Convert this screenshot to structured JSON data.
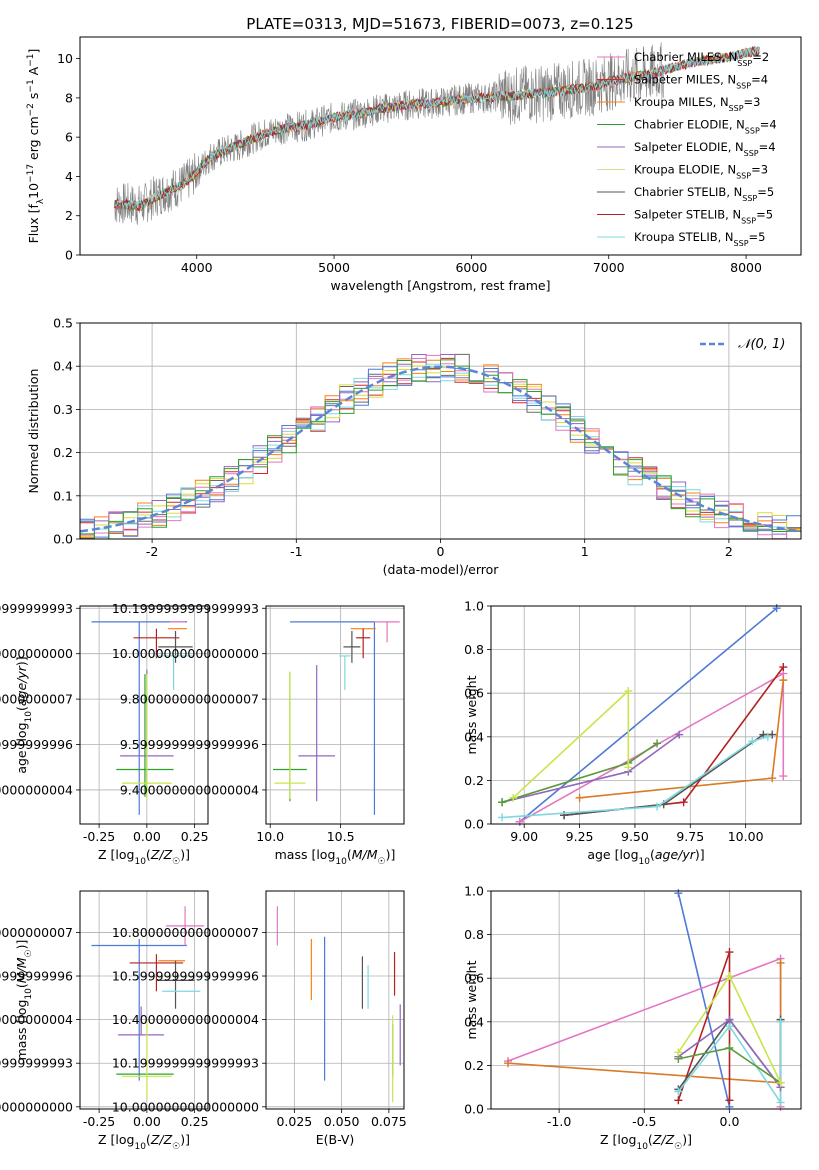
{
  "figure_title": "PLATE=0313, MJD=51673, FIBERID=0073, z=0.125",
  "chart_data": [
    {
      "id": "spectrum",
      "type": "line",
      "title": "PLATE=0313, MJD=51673, FIBERID=0073, z=0.125",
      "xlabel": "wavelength [Angstrom, rest frame]",
      "ylabel": "Flux [fλ10⁻¹⁷ erg cm⁻² s⁻¹ A⁻¹]",
      "xlim": [
        3150,
        8400
      ],
      "ylim": [
        0,
        11.1
      ],
      "xticks": [
        4000,
        5000,
        6000,
        7000,
        8000
      ],
      "yticks": [
        0,
        2,
        4,
        6,
        8,
        10
      ],
      "grid": false,
      "legend_position": "top-right",
      "data_trace": {
        "color": "#808080",
        "x": [
          3400,
          3500,
          3600,
          3700,
          3800,
          3900,
          4000,
          4100,
          4200,
          4300,
          4400,
          4500,
          4600,
          4700,
          4800,
          4900,
          5000,
          5100,
          5200,
          5300,
          5400,
          5500,
          5600,
          5700,
          5800,
          5900,
          6000,
          6100,
          6200,
          6300,
          6400,
          6500,
          6600,
          6700,
          6800,
          6900,
          7000,
          7100,
          7200,
          7300,
          7400
        ],
        "y": [
          2.6,
          2.6,
          2.5,
          3.0,
          3.3,
          3.6,
          4.2,
          5.0,
          5.3,
          5.5,
          5.9,
          6.2,
          6.4,
          6.5,
          6.6,
          6.8,
          7.0,
          7.1,
          7.2,
          7.4,
          7.5,
          7.6,
          7.7,
          7.7,
          7.8,
          7.9,
          8.0,
          8.0,
          8.1,
          8.1,
          8.2,
          8.2,
          8.3,
          8.4,
          8.5,
          8.6,
          8.8,
          9.0,
          9.1,
          9.2,
          9.4
        ]
      },
      "model_x": [
        3400,
        3500,
        3600,
        3700,
        3800,
        3900,
        4000,
        4100,
        4200,
        4300,
        4400,
        4500,
        4600,
        4700,
        4800,
        4900,
        5000,
        5100,
        5200,
        5300,
        5400,
        5500,
        5600,
        5700,
        5800,
        5900,
        6000,
        6100,
        6200,
        6300,
        6400,
        6500,
        6600,
        6700,
        6800,
        6900,
        7000,
        7100,
        7200,
        7300,
        7400,
        7500,
        7600,
        7700,
        7800,
        7900,
        8000,
        8100
      ],
      "model_y": [
        2.6,
        2.55,
        2.5,
        2.95,
        3.3,
        3.6,
        4.2,
        5.0,
        5.3,
        5.6,
        5.9,
        6.2,
        6.4,
        6.5,
        6.6,
        6.8,
        7.0,
        7.1,
        7.2,
        7.4,
        7.5,
        7.6,
        7.7,
        7.7,
        7.8,
        7.9,
        8.0,
        8.0,
        8.1,
        8.1,
        8.2,
        8.25,
        8.3,
        8.4,
        8.5,
        8.6,
        8.8,
        9.0,
        9.1,
        9.2,
        9.4,
        9.6,
        9.8,
        9.9,
        10.0,
        10.1,
        10.3,
        10.4
      ],
      "series": [
        {
          "name": "Chabrier MILES, N_SSP=2",
          "color": "#e377c2"
        },
        {
          "name": "Salpeter MILES, N_SSP=4",
          "color": "#d62728"
        },
        {
          "name": "Kroupa MILES, N_SSP=3",
          "color": "#ff7f0e"
        },
        {
          "name": "Chabrier ELODIE, N_SSP=4",
          "color": "#2ca02c"
        },
        {
          "name": "Salpeter ELODIE, N_SSP=4",
          "color": "#9467bd"
        },
        {
          "name": "Kroupa ELODIE, N_SSP=3",
          "color": "#dbdb8d"
        },
        {
          "name": "Chabrier STELIB, N_SSP=5",
          "color": "#555555"
        },
        {
          "name": "Salpeter STELIB, N_SSP=5",
          "color": "#b22222"
        },
        {
          "name": "Kroupa STELIB, N_SSP=5",
          "color": "#7fd8e0"
        }
      ],
      "legend_labels": [
        {
          "model": "Chabrier MILES, N",
          "sub": "SSP",
          "val": "=2"
        },
        {
          "model": "Salpeter MILES, N",
          "sub": "SSP",
          "val": "=4"
        },
        {
          "model": "Kroupa MILES, N",
          "sub": "SSP",
          "val": "=3"
        },
        {
          "model": "Chabrier ELODIE, N",
          "sub": "SSP",
          "val": "=4"
        },
        {
          "model": "Salpeter ELODIE, N",
          "sub": "SSP",
          "val": "=4"
        },
        {
          "model": "Kroupa ELODIE, N",
          "sub": "SSP",
          "val": "=3"
        },
        {
          "model": "Chabrier STELIB, N",
          "sub": "SSP",
          "val": "=5"
        },
        {
          "model": "Salpeter STELIB, N",
          "sub": "SSP",
          "val": "=5"
        },
        {
          "model": "Kroupa STELIB, N",
          "sub": "SSP",
          "val": "=5"
        }
      ]
    },
    {
      "id": "residuals",
      "type": "bar",
      "xlabel": "(data-model)/error",
      "ylabel": "Normed distribution",
      "xlim": [
        -2.5,
        2.5
      ],
      "ylim": [
        0,
        0.5
      ],
      "xticks": [
        -2,
        -1,
        0,
        1,
        2
      ],
      "yticks": [
        0.0,
        0.1,
        0.2,
        0.3,
        0.4,
        0.5
      ],
      "grid": true,
      "bin_width": 0.1,
      "bin_start": -2.5,
      "reference_curve": {
        "name": "𝒩(0, 1)",
        "mean": 0,
        "sigma": 1,
        "color": "#5a86d6"
      },
      "histogram_colors": [
        "#6a6a6a",
        "#d62728",
        "#ff7f0e",
        "#9467bd",
        "#dbdb3d",
        "#7fd8e0",
        "#e377c2",
        "#4e79d8",
        "#2ca02c"
      ],
      "legend_position": "top-right"
    },
    {
      "id": "age-vs-Z",
      "type": "scatter",
      "xlabel": "Z [log10(Z/Z☉)]",
      "ylabel": "age [log10(age/yr)]",
      "xlim": [
        -0.35,
        0.32
      ],
      "ylim": [
        9.25,
        10.21
      ],
      "xticks": [
        -0.25,
        0.0,
        0.25
      ],
      "yticks": [
        9.4,
        9.6,
        9.8,
        10.0,
        10.2
      ],
      "grid": true,
      "points": [
        {
          "x": -0.04,
          "y": 10.14,
          "xerr": 0.25,
          "yerr_lo": 0.85,
          "yerr_hi": 0.0,
          "color": "#4e79d8"
        },
        {
          "x": 0.16,
          "y": 10.14,
          "xerr": 0.04,
          "yerr_lo": 0.0,
          "yerr_hi": 0.0,
          "color": "#e377c2"
        },
        {
          "x": 0.16,
          "y": 10.11,
          "xerr": 0.05,
          "yerr_lo": 0.0,
          "yerr_hi": 0.0,
          "color": "#ff7f0e"
        },
        {
          "x": 0.05,
          "y": 10.07,
          "xerr": 0.12,
          "yerr_lo": 0.09,
          "yerr_hi": 0.04,
          "color": "#b22222"
        },
        {
          "x": 0.15,
          "y": 10.03,
          "xerr": 0.09,
          "yerr_lo": 0.07,
          "yerr_hi": 0.07,
          "color": "#555555"
        },
        {
          "x": 0.14,
          "y": 9.99,
          "xerr": 0.1,
          "yerr_lo": 0.15,
          "yerr_hi": 0.0,
          "color": "#7fd8e0"
        },
        {
          "x": 0.0,
          "y": 9.55,
          "xerr": 0.14,
          "yerr_lo": 0.18,
          "yerr_hi": 0.38,
          "color": "#9467bd"
        },
        {
          "x": -0.01,
          "y": 9.49,
          "xerr": 0.15,
          "yerr_lo": 0.12,
          "yerr_hi": 0.42,
          "color": "#2ca02c"
        },
        {
          "x": 0.0,
          "y": 9.43,
          "xerr": 0.13,
          "yerr_lo": 0.07,
          "yerr_hi": 0.48,
          "color": "#c8e64a"
        }
      ]
    },
    {
      "id": "age-vs-mass",
      "type": "scatter",
      "xlabel": "mass [log10(M/M☉)]",
      "ylabel": "",
      "xlim": [
        9.97,
        10.95
      ],
      "ylim": [
        9.25,
        10.21
      ],
      "xticks": [
        10.0,
        10.5
      ],
      "yticks": [
        9.4,
        9.6,
        9.8,
        10.0,
        10.2
      ],
      "grid": true,
      "points": [
        {
          "x": 10.74,
          "y": 10.14,
          "xerr_lo": 0.6,
          "xerr_hi": 0.0,
          "yerr_lo": 0.85,
          "yerr_hi": 0.0,
          "color": "#4e79d8"
        },
        {
          "x": 10.83,
          "y": 10.14,
          "xerr": 0.09,
          "yerr_lo": 0.09,
          "yerr_hi": 0.0,
          "color": "#e377c2"
        },
        {
          "x": 10.66,
          "y": 10.11,
          "xerr": 0.09,
          "yerr_lo": 0.0,
          "yerr_hi": 0.0,
          "color": "#ff7f0e"
        },
        {
          "x": 10.66,
          "y": 10.07,
          "xerr": 0.05,
          "yerr_lo": 0.09,
          "yerr_hi": 0.04,
          "color": "#b22222"
        },
        {
          "x": 10.58,
          "y": 10.03,
          "xerr": 0.06,
          "yerr_lo": 0.07,
          "yerr_hi": 0.07,
          "color": "#555555"
        },
        {
          "x": 10.53,
          "y": 9.99,
          "xerr": 0.04,
          "yerr_lo": 0.15,
          "yerr_hi": 0.0,
          "color": "#7fd8e0"
        },
        {
          "x": 10.33,
          "y": 9.55,
          "xerr": 0.13,
          "yerr_lo": 0.2,
          "yerr_hi": 0.4,
          "color": "#9467bd"
        },
        {
          "x": 10.14,
          "y": 9.49,
          "xerr": 0.12,
          "yerr_lo": 0.14,
          "yerr_hi": 0.43,
          "color": "#2ca02c"
        },
        {
          "x": 10.14,
          "y": 9.43,
          "xerr": 0.11,
          "yerr_lo": 0.07,
          "yerr_hi": 0.49,
          "color": "#c8e64a"
        }
      ]
    },
    {
      "id": "weight-vs-age",
      "type": "line",
      "xlabel": "age [log10(age/yr)]",
      "ylabel": "mass weight",
      "xlim": [
        8.85,
        10.25
      ],
      "ylim": [
        0,
        1.0
      ],
      "xticks": [
        9.0,
        9.25,
        9.5,
        9.75,
        10.0
      ],
      "yticks": [
        0.0,
        0.2,
        0.4,
        0.6,
        0.8,
        1.0
      ],
      "grid": true,
      "series": [
        {
          "color": "#4e79d8",
          "x": [
            8.98,
            10.14
          ],
          "y": [
            0.01,
            0.99
          ]
        },
        {
          "color": "#e377c2",
          "x": [
            8.98,
            10.17,
            10.17
          ],
          "y": [
            0.01,
            0.69,
            0.22
          ]
        },
        {
          "color": "#d97a26",
          "x": [
            9.25,
            10.12,
            10.17
          ],
          "y": [
            0.12,
            0.21,
            0.66
          ]
        },
        {
          "color": "#b22222",
          "x": [
            9.18,
            9.72,
            10.17
          ],
          "y": [
            0.04,
            0.1,
            0.72
          ]
        },
        {
          "color": "#555555",
          "x": [
            9.18,
            9.63,
            10.08,
            10.12
          ],
          "y": [
            0.04,
            0.09,
            0.41,
            0.41
          ]
        },
        {
          "color": "#7fd8e0",
          "x": [
            8.9,
            9.6,
            10.03,
            10.1
          ],
          "y": [
            0.03,
            0.08,
            0.38,
            0.4
          ]
        },
        {
          "color": "#9467bd",
          "x": [
            8.9,
            9.47,
            9.7
          ],
          "y": [
            0.1,
            0.24,
            0.41
          ]
        },
        {
          "color": "#5a9a3a",
          "x": [
            8.9,
            9.47,
            9.6
          ],
          "y": [
            0.1,
            0.28,
            0.37
          ]
        },
        {
          "color": "#c8e64a",
          "x": [
            8.95,
            9.47,
            9.47
          ],
          "y": [
            0.12,
            0.61,
            0.26
          ]
        }
      ]
    },
    {
      "id": "mass-vs-Z",
      "type": "scatter",
      "xlabel": "Z [log10(Z/Z☉)]",
      "ylabel": "mass [log10(M/M☉)]",
      "xlim": [
        -0.35,
        0.32
      ],
      "ylim": [
        9.99,
        10.99
      ],
      "xticks": [
        -0.25,
        0.0,
        0.25
      ],
      "yticks": [
        10.0,
        10.2,
        10.4,
        10.6,
        10.8
      ],
      "grid": true,
      "points": [
        {
          "x": -0.04,
          "y": 10.74,
          "xerr": 0.25,
          "yerr_lo": 0.62,
          "yerr_hi": 0.03,
          "color": "#4e79d8"
        },
        {
          "x": 0.2,
          "y": 10.83,
          "xerr": 0.1,
          "yerr_lo": 0.09,
          "yerr_hi": 0.09,
          "color": "#e377c2"
        },
        {
          "x": 0.13,
          "y": 10.67,
          "xerr": 0.07,
          "yerr_lo": 0.0,
          "yerr_hi": 0.0,
          "color": "#ff7f0e"
        },
        {
          "x": 0.05,
          "y": 10.66,
          "xerr": 0.14,
          "yerr_lo": 0.13,
          "yerr_hi": 0.04,
          "color": "#b22222"
        },
        {
          "x": 0.15,
          "y": 10.58,
          "xerr": 0.1,
          "yerr_lo": 0.13,
          "yerr_hi": 0.09,
          "color": "#555555"
        },
        {
          "x": 0.18,
          "y": 10.53,
          "xerr": 0.1,
          "yerr_lo": 0.0,
          "yerr_hi": 0.0,
          "color": "#7fd8e0"
        },
        {
          "x": -0.03,
          "y": 10.33,
          "xerr": 0.12,
          "yerr_lo": 0.0,
          "yerr_hi": 0.13,
          "color": "#9467bd"
        },
        {
          "x": -0.01,
          "y": 10.15,
          "xerr": 0.15,
          "yerr_lo": 0.0,
          "yerr_hi": 0.0,
          "color": "#2ca02c"
        },
        {
          "x": 0.0,
          "y": 10.14,
          "xerr": 0.13,
          "yerr_lo": 0.1,
          "yerr_hi": 0.25,
          "color": "#c8e64a"
        }
      ]
    },
    {
      "id": "mass-vs-EBV",
      "type": "scatter",
      "xlabel": "E(B-V)",
      "ylabel": "",
      "xlim": [
        0.01,
        0.083
      ],
      "ylim": [
        9.99,
        10.99
      ],
      "xticks": [
        0.025,
        0.05,
        0.075
      ],
      "yticks": [
        10.0,
        10.2,
        10.4,
        10.6,
        10.8
      ],
      "grid": true,
      "points": [
        {
          "x": 0.016,
          "y": 10.83,
          "yerr_lo": 0.09,
          "yerr_hi": 0.09,
          "color": "#e377c2"
        },
        {
          "x": 0.034,
          "y": 10.63,
          "yerr_lo": 0.14,
          "yerr_hi": 0.14,
          "color": "#ff7f0e"
        },
        {
          "x": 0.041,
          "y": 10.45,
          "yerr_lo": 0.33,
          "yerr_hi": 0.33,
          "color": "#4e79d8"
        },
        {
          "x": 0.061,
          "y": 10.57,
          "yerr_lo": 0.12,
          "yerr_hi": 0.12,
          "color": "#555555"
        },
        {
          "x": 0.064,
          "y": 10.55,
          "yerr_lo": 0.1,
          "yerr_hi": 0.1,
          "color": "#7fd8e0"
        },
        {
          "x": 0.077,
          "y": 10.26,
          "yerr_lo": 0.12,
          "yerr_hi": 0.12,
          "color": "#2ca02c"
        },
        {
          "x": 0.077,
          "y": 10.22,
          "yerr_lo": 0.2,
          "yerr_hi": 0.2,
          "color": "#c8e64a"
        },
        {
          "x": 0.078,
          "y": 10.61,
          "yerr_lo": 0.1,
          "yerr_hi": 0.1,
          "color": "#b22222"
        },
        {
          "x": 0.081,
          "y": 10.33,
          "yerr_lo": 0.14,
          "yerr_hi": 0.14,
          "color": "#9467bd"
        }
      ]
    },
    {
      "id": "weight-vs-Z",
      "type": "line",
      "xlabel": "Z [log10(Z/Z☉)]",
      "ylabel": "mass weight",
      "xlim": [
        -1.4,
        0.42
      ],
      "ylim": [
        0,
        1.0
      ],
      "xticks": [
        -1.0,
        -0.5,
        0.0
      ],
      "yticks": [
        0.0,
        0.2,
        0.4,
        0.6,
        0.8,
        1.0
      ],
      "grid": true,
      "series": [
        {
          "color": "#4e79d8",
          "x": [
            -0.3,
            0.0
          ],
          "y": [
            0.99,
            0.01
          ]
        },
        {
          "color": "#e377c2",
          "x": [
            -1.3,
            0.3,
            0.3
          ],
          "y": [
            0.22,
            0.69,
            0.01
          ]
        },
        {
          "color": "#d97a26",
          "x": [
            -1.3,
            0.3,
            0.3
          ],
          "y": [
            0.21,
            0.12,
            0.67
          ]
        },
        {
          "color": "#b22222",
          "x": [
            -0.3,
            0.0,
            0.0
          ],
          "y": [
            0.04,
            0.72,
            0.04
          ]
        },
        {
          "color": "#555555",
          "x": [
            -0.3,
            0.0,
            0.3,
            0.3
          ],
          "y": [
            0.09,
            0.41,
            0.1,
            0.41
          ]
        },
        {
          "color": "#7fd8e0",
          "x": [
            -0.3,
            0.0,
            0.3,
            0.3
          ],
          "y": [
            0.08,
            0.38,
            0.03,
            0.4
          ]
        },
        {
          "color": "#9467bd",
          "x": [
            -0.3,
            0.0,
            0.3
          ],
          "y": [
            0.24,
            0.41,
            0.1
          ]
        },
        {
          "color": "#5a9a3a",
          "x": [
            -0.3,
            0.0,
            0.3
          ],
          "y": [
            0.23,
            0.28,
            0.12
          ]
        },
        {
          "color": "#c8e64a",
          "x": [
            -0.3,
            0.0,
            0.3
          ],
          "y": [
            0.26,
            0.61,
            0.12
          ]
        }
      ]
    }
  ]
}
